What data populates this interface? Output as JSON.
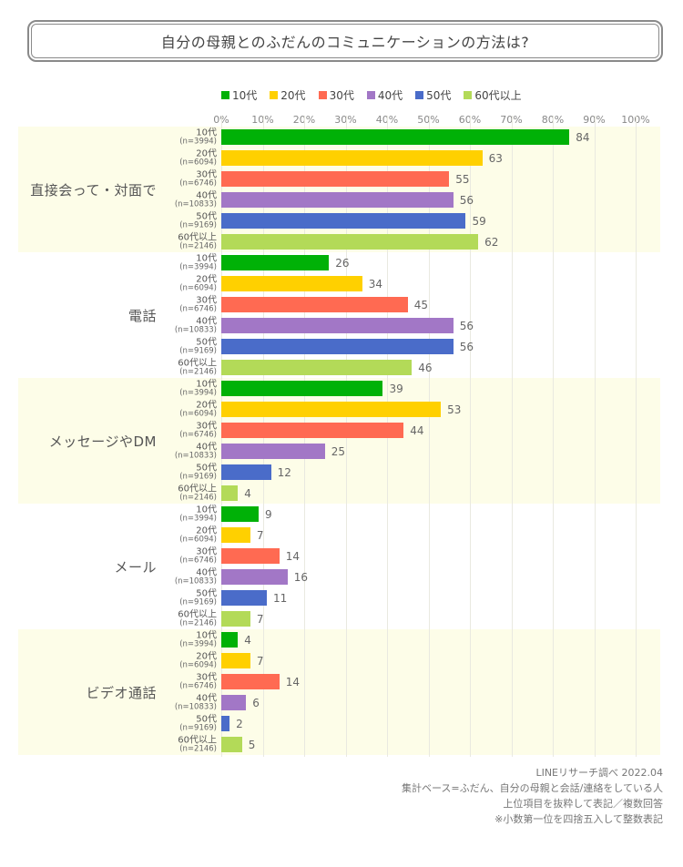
{
  "title": "自分の母親とのふだんのコミュニケーションの方法は?",
  "legend": {
    "items": [
      {
        "label": "10代",
        "color": "#00B107"
      },
      {
        "label": "20代",
        "color": "#FFD000"
      },
      {
        "label": "30代",
        "color": "#FF6A52"
      },
      {
        "label": "40代",
        "color": "#A277C6"
      },
      {
        "label": "50代",
        "color": "#4A6CC9"
      },
      {
        "label": "60代以上",
        "color": "#B3DA58"
      }
    ]
  },
  "axis": {
    "ticks": [
      "0%",
      "10%",
      "20%",
      "30%",
      "40%",
      "50%",
      "60%",
      "70%",
      "80%",
      "90%",
      "100%"
    ],
    "min": 0,
    "max": 100
  },
  "chart_data": {
    "type": "bar",
    "orientation": "horizontal",
    "title": "自分の母親とのふだんのコミュニケーションの方法は?",
    "unit": "%",
    "xlim": [
      0,
      100
    ],
    "grid": true,
    "legend_position": "top",
    "value_format": "integer",
    "categories": [
      "直接会って・対面で",
      "電話",
      "メッセージやDM",
      "メール",
      "ビデオ通話"
    ],
    "series": [
      {
        "name": "10代",
        "n_label": "(n=3994)",
        "color": "#00B107",
        "values": [
          84,
          26,
          39,
          9,
          4
        ]
      },
      {
        "name": "20代",
        "n_label": "(n=6094)",
        "color": "#FFD000",
        "values": [
          63,
          34,
          53,
          7,
          7
        ]
      },
      {
        "name": "30代",
        "n_label": "(n=6746)",
        "color": "#FF6A52",
        "values": [
          55,
          45,
          44,
          14,
          14
        ]
      },
      {
        "name": "40代",
        "n_label": "(n=10833)",
        "color": "#A277C6",
        "values": [
          56,
          56,
          25,
          16,
          6
        ]
      },
      {
        "name": "50代",
        "n_label": "(n=9169)",
        "color": "#4A6CC9",
        "values": [
          59,
          56,
          12,
          11,
          2
        ]
      },
      {
        "name": "60代以上",
        "n_label": "(n=2146)",
        "color": "#B3DA58",
        "values": [
          62,
          46,
          4,
          7,
          5
        ]
      }
    ]
  },
  "footer": {
    "lines": [
      "LINEリサーチ調べ 2022.04",
      "集計ベース=ふだん、自分の母親と会話/連絡をしている人",
      "上位項目を抜粋して表記／複数回答",
      "※小数第一位を四捨五入して整数表記"
    ]
  },
  "style_colors": {
    "section_highlight": "#FDFDE8",
    "gridline": "#E9E9E0",
    "title_border": "#8A8A8A"
  }
}
